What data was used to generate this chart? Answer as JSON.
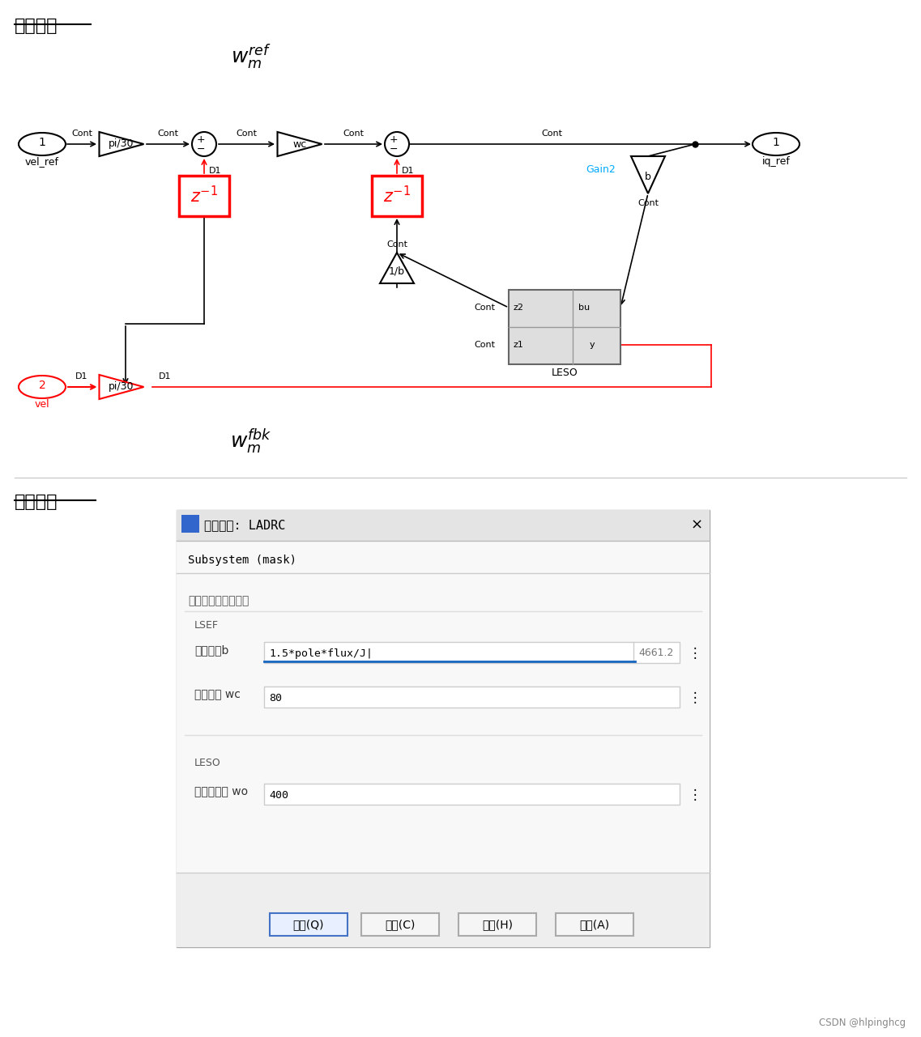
{
  "title_top": "模型搭建",
  "title_bottom": "参数设置",
  "bg_color": "#ffffff",
  "dialog": {
    "title": "模块参数: LADRC",
    "subtitle": "Subsystem (mask)",
    "section1": "速度环自抗扰控制器",
    "group1": "LSEF",
    "row1_label": "补偿系数b",
    "row1_value": "1.5*pole*flux/J|",
    "row1_right": "4661.2",
    "row2_label": "调节增益 wc",
    "row2_value": "80",
    "group2": "LESO",
    "row3_label": "观测器带宽 wo",
    "row3_value": "400",
    "btn1": "确定(Q)",
    "btn2": "取消(C)",
    "btn3": "帮助(H)",
    "btn4": "应用(A)"
  },
  "watermark": "CSDN @hlpinghcg"
}
